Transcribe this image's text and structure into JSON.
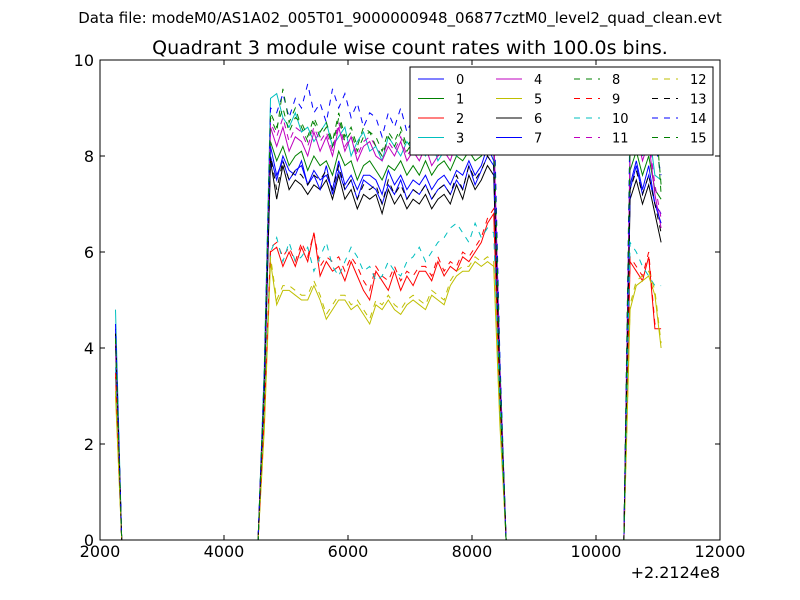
{
  "figure": {
    "suptitle": "Data file: modeM0/AS1A02_005T01_9000000948_06877cztM0_level2_quad_clean.evt"
  },
  "chart_data": {
    "type": "line",
    "title": "Quadrant 3 module wise count rates with 100.0s bins.",
    "xlabel": "",
    "ylabel": "",
    "x_offset_label": "+2.2124e8",
    "xlim": [
      2000,
      12000
    ],
    "ylim": [
      0,
      10
    ],
    "x_ticks": [
      2000,
      4000,
      6000,
      8000,
      10000,
      12000
    ],
    "y_ticks": [
      0,
      2,
      4,
      6,
      8,
      10
    ],
    "grid": false,
    "legend_position": "top-right",
    "legend_columns": 4,
    "x": [
      2250,
      2350,
      2450,
      4450,
      4550,
      4650,
      4750,
      4850,
      4950,
      5050,
      5150,
      5250,
      5350,
      5450,
      5550,
      5650,
      5750,
      5850,
      5950,
      6050,
      6150,
      6250,
      6350,
      6450,
      6550,
      6650,
      6750,
      6850,
      6950,
      7050,
      7150,
      7250,
      7350,
      7450,
      7550,
      7650,
      7750,
      7850,
      7950,
      8050,
      8150,
      8250,
      8350,
      8450,
      8550,
      8650,
      10450,
      10550,
      10650,
      10750,
      10850,
      10950,
      11050
    ],
    "series": [
      {
        "name": "0",
        "color": "#0000ff",
        "dash": "solid",
        "values": [
          4.1,
          0,
          0,
          0,
          0,
          3.1,
          8.0,
          7.5,
          8.0,
          7.7,
          7.6,
          7.9,
          7.4,
          7.7,
          7.5,
          7.6,
          7.3,
          7.9,
          7.4,
          7.6,
          7.3,
          7.6,
          7.6,
          7.5,
          7.2,
          7.7,
          7.4,
          7.6,
          7.3,
          7.5,
          7.4,
          7.6,
          7.3,
          7.5,
          7.6,
          7.4,
          7.7,
          7.6,
          7.9,
          7.6,
          7.8,
          8.2,
          7.9,
          3.2,
          0,
          0,
          0,
          7.4,
          7.9,
          7.3,
          7.8,
          7.0,
          6.8
        ]
      },
      {
        "name": "1",
        "color": "#008000",
        "dash": "solid",
        "values": [
          4.3,
          0,
          0,
          0,
          0,
          3.3,
          8.3,
          7.9,
          8.2,
          7.8,
          8.0,
          8.1,
          7.7,
          8.0,
          7.8,
          7.9,
          7.6,
          8.1,
          7.8,
          7.9,
          7.5,
          7.8,
          7.9,
          7.7,
          7.5,
          7.8,
          7.7,
          7.9,
          7.6,
          7.8,
          7.6,
          7.9,
          7.6,
          7.8,
          7.9,
          7.7,
          8.0,
          7.9,
          8.1,
          7.9,
          8.0,
          8.3,
          8.1,
          3.4,
          0,
          0,
          0,
          7.7,
          8.1,
          7.6,
          8.0,
          7.3,
          7.1
        ]
      },
      {
        "name": "2",
        "color": "#ff0000",
        "dash": "solid",
        "values": [
          3.4,
          0,
          0,
          0,
          0,
          2.5,
          6.0,
          6.1,
          5.7,
          6.0,
          5.7,
          6.1,
          5.8,
          6.4,
          5.5,
          5.8,
          5.6,
          5.7,
          5.4,
          5.8,
          5.5,
          5.2,
          5.0,
          5.6,
          5.4,
          5.2,
          5.6,
          5.2,
          5.5,
          5.3,
          5.6,
          5.6,
          5.4,
          5.8,
          5.5,
          5.7,
          5.6,
          5.9,
          5.8,
          6.0,
          6.2,
          6.6,
          6.8,
          2.8,
          0,
          0,
          0,
          5.8,
          5.6,
          5.4,
          5.9,
          4.4,
          4.4
        ]
      },
      {
        "name": "3",
        "color": "#00bfbf",
        "dash": "solid",
        "values": [
          4.8,
          0,
          0,
          0,
          0,
          3.6,
          9.2,
          9.3,
          8.8,
          8.6,
          8.9,
          8.5,
          8.6,
          8.3,
          8.5,
          8.7,
          8.2,
          8.4,
          8.6,
          8.0,
          8.3,
          8.5,
          8.1,
          8.2,
          7.9,
          8.4,
          8.2,
          8.0,
          8.3,
          8.1,
          8.2,
          8.0,
          8.3,
          7.9,
          8.1,
          8.2,
          8.0,
          8.4,
          8.1,
          8.5,
          8.3,
          8.6,
          8.4,
          3.7,
          0,
          0,
          0,
          8.2,
          8.5,
          8.0,
          8.6,
          7.6,
          7.5
        ]
      },
      {
        "name": "4",
        "color": "#bf00bf",
        "dash": "solid",
        "values": [
          4.0,
          0,
          0,
          0,
          0,
          3.2,
          8.6,
          8.2,
          8.6,
          8.1,
          8.4,
          8.3,
          8.0,
          8.5,
          8.1,
          8.4,
          8.0,
          8.6,
          8.1,
          8.4,
          7.9,
          8.2,
          8.3,
          8.0,
          7.9,
          8.2,
          8.0,
          8.3,
          7.9,
          8.1,
          7.9,
          8.2,
          7.8,
          8.0,
          8.1,
          7.9,
          8.3,
          8.1,
          8.5,
          8.2,
          8.4,
          8.7,
          8.5,
          3.5,
          0,
          0,
          0,
          8.1,
          8.5,
          7.9,
          8.3,
          7.2,
          6.5
        ]
      },
      {
        "name": "5",
        "color": "#bfbf00",
        "dash": "solid",
        "values": [
          3.0,
          0,
          0,
          0,
          0,
          2.3,
          5.8,
          4.9,
          5.2,
          5.2,
          5.1,
          5.0,
          5.0,
          5.3,
          5.0,
          4.6,
          4.8,
          5.0,
          5.0,
          4.8,
          4.9,
          4.7,
          4.5,
          4.9,
          4.8,
          5.0,
          4.8,
          4.7,
          4.9,
          5.0,
          4.9,
          4.8,
          5.1,
          5.0,
          4.9,
          5.3,
          5.5,
          5.6,
          5.6,
          5.8,
          5.7,
          5.8,
          5.7,
          2.4,
          0,
          0,
          0,
          4.8,
          5.3,
          5.4,
          5.5,
          5.1,
          4.0
        ]
      },
      {
        "name": "6",
        "color": "#000000",
        "dash": "solid",
        "values": [
          4.2,
          0,
          0,
          0,
          0,
          3.1,
          7.9,
          7.1,
          7.8,
          7.3,
          7.5,
          7.4,
          7.2,
          7.4,
          7.3,
          7.5,
          7.1,
          7.6,
          7.1,
          7.3,
          6.9,
          7.2,
          7.1,
          7.2,
          6.8,
          7.3,
          7.0,
          7.2,
          6.9,
          7.1,
          7.0,
          7.2,
          6.9,
          7.1,
          7.2,
          7.0,
          7.4,
          7.1,
          7.6,
          7.3,
          7.5,
          7.8,
          7.6,
          3.1,
          0,
          0,
          0,
          7.1,
          7.5,
          7.0,
          7.4,
          6.8,
          6.2
        ]
      },
      {
        "name": "7",
        "color": "#0000ff",
        "dash": "solid",
        "values": [
          4.4,
          0,
          0,
          0,
          0,
          3.3,
          8.2,
          7.6,
          7.9,
          7.5,
          7.7,
          7.8,
          7.4,
          7.6,
          7.3,
          7.8,
          7.2,
          7.7,
          7.3,
          7.5,
          7.1,
          7.5,
          7.4,
          7.3,
          7.0,
          7.4,
          7.2,
          7.5,
          7.1,
          7.3,
          7.2,
          7.4,
          7.1,
          7.3,
          7.4,
          7.2,
          7.5,
          7.3,
          7.8,
          7.4,
          7.7,
          8.0,
          7.8,
          3.3,
          0,
          0,
          0,
          7.3,
          7.8,
          7.2,
          7.6,
          7.0,
          6.6
        ]
      },
      {
        "name": "8",
        "color": "#008000",
        "dash": "dashed",
        "values": [
          4.2,
          0,
          0,
          0,
          0,
          3.4,
          8.9,
          8.6,
          9.0,
          8.5,
          8.8,
          8.7,
          8.4,
          8.8,
          8.5,
          8.7,
          8.3,
          8.9,
          8.4,
          8.6,
          8.2,
          8.6,
          8.5,
          8.4,
          8.1,
          8.5,
          8.3,
          8.6,
          8.2,
          8.4,
          8.3,
          8.5,
          8.2,
          8.4,
          8.5,
          8.3,
          8.7,
          8.5,
          8.9,
          8.6,
          8.8,
          9.1,
          8.9,
          3.6,
          0,
          0,
          0,
          8.5,
          8.8,
          8.3,
          8.7,
          8.9,
          7.4
        ]
      },
      {
        "name": "9",
        "color": "#ff0000",
        "dash": "dashed",
        "values": [
          3.5,
          0,
          0,
          0,
          0,
          2.6,
          6.1,
          6.2,
          5.9,
          6.1,
          5.8,
          6.2,
          5.9,
          6.4,
          5.7,
          5.9,
          5.8,
          5.9,
          5.6,
          5.9,
          5.7,
          5.4,
          5.2,
          5.7,
          5.5,
          5.4,
          5.7,
          5.4,
          5.6,
          5.5,
          5.7,
          5.7,
          5.5,
          5.9,
          5.6,
          5.8,
          5.7,
          6.0,
          5.9,
          6.1,
          6.3,
          6.7,
          6.9,
          2.9,
          0,
          0,
          0,
          5.9,
          5.7,
          5.5,
          6.0,
          4.5,
          4.5
        ]
      },
      {
        "name": "10",
        "color": "#00bfbf",
        "dash": "dashed",
        "values": [
          3.6,
          0,
          0,
          0,
          0,
          2.7,
          6.0,
          6.3,
          5.8,
          6.2,
          5.8,
          5.9,
          6.1,
          5.6,
          5.9,
          6.2,
          5.7,
          5.5,
          5.8,
          6.1,
          5.9,
          5.6,
          5.7,
          5.4,
          5.5,
          5.8,
          5.6,
          5.5,
          5.8,
          5.9,
          6.1,
          5.8,
          6.0,
          6.2,
          6.3,
          6.5,
          6.6,
          6.4,
          6.2,
          6.6,
          6.3,
          6.5,
          6.4,
          2.8,
          0,
          0,
          0,
          6.2,
          6.0,
          5.7,
          5.5,
          5.3,
          5.3
        ]
      },
      {
        "name": "11",
        "color": "#bf00bf",
        "dash": "dashed",
        "values": [
          4.1,
          0,
          0,
          0,
          0,
          3.3,
          8.7,
          8.4,
          8.8,
          8.3,
          8.6,
          8.5,
          8.2,
          8.6,
          8.3,
          8.5,
          8.1,
          8.7,
          8.2,
          8.4,
          8.0,
          8.3,
          8.4,
          8.2,
          8.0,
          8.3,
          8.1,
          8.4,
          8.0,
          8.2,
          8.1,
          8.3,
          8.0,
          8.2,
          8.3,
          8.1,
          8.4,
          8.2,
          8.6,
          8.3,
          8.5,
          8.8,
          8.6,
          3.6,
          0,
          0,
          0,
          8.2,
          8.6,
          8.1,
          8.4,
          7.4,
          6.7
        ]
      },
      {
        "name": "12",
        "color": "#bfbf00",
        "dash": "dashed",
        "values": [
          3.1,
          0,
          0,
          0,
          0,
          2.4,
          5.9,
          5.0,
          5.3,
          5.3,
          5.2,
          5.1,
          5.1,
          5.4,
          5.1,
          4.7,
          4.9,
          5.1,
          5.1,
          4.9,
          5.0,
          4.8,
          4.6,
          5.0,
          4.9,
          5.1,
          4.9,
          4.8,
          5.0,
          5.1,
          5.0,
          4.9,
          5.2,
          5.1,
          5.0,
          5.4,
          5.6,
          5.7,
          5.7,
          5.9,
          5.8,
          5.9,
          5.8,
          2.5,
          0,
          0,
          0,
          4.9,
          5.4,
          5.5,
          5.6,
          5.2,
          4.1
        ]
      },
      {
        "name": "13",
        "color": "#000000",
        "dash": "dashed",
        "values": [
          4.3,
          0,
          0,
          0,
          0,
          3.2,
          8.0,
          7.3,
          7.9,
          7.5,
          7.7,
          7.6,
          7.4,
          7.6,
          7.5,
          7.7,
          7.3,
          7.8,
          7.3,
          7.5,
          7.1,
          7.4,
          7.3,
          7.4,
          7.0,
          7.5,
          7.2,
          7.4,
          7.1,
          7.3,
          7.2,
          7.4,
          7.1,
          7.3,
          7.4,
          7.2,
          7.6,
          7.3,
          7.8,
          7.5,
          7.7,
          8.0,
          7.8,
          3.2,
          0,
          0,
          0,
          7.3,
          7.7,
          7.2,
          7.6,
          7.0,
          6.4
        ]
      },
      {
        "name": "14",
        "color": "#0000ff",
        "dash": "dashed",
        "values": [
          4.5,
          0,
          0,
          0,
          0,
          3.5,
          9.0,
          8.9,
          9.3,
          8.8,
          9.2,
          9.0,
          9.5,
          8.9,
          9.1,
          8.7,
          9.4,
          9.0,
          9.3,
          8.8,
          9.1,
          8.6,
          8.9,
          8.8,
          8.4,
          8.9,
          8.6,
          9.0,
          8.5,
          8.8,
          8.6,
          8.9,
          8.5,
          8.8,
          9.0,
          8.6,
          9.1,
          8.8,
          9.3,
          8.9,
          9.2,
          9.5,
          9.3,
          3.8,
          0,
          0,
          0,
          8.9,
          9.0,
          8.3,
          8.6,
          8.3,
          7.6
        ]
      },
      {
        "name": "15",
        "color": "#008000",
        "dash": "dashed",
        "values": [
          4.2,
          0,
          0,
          0,
          0,
          3.4,
          8.8,
          8.5,
          9.4,
          8.7,
          9.0,
          8.6,
          8.3,
          8.7,
          8.4,
          8.6,
          8.2,
          8.8,
          8.3,
          8.5,
          8.1,
          8.4,
          8.5,
          8.2,
          8.0,
          8.4,
          8.2,
          8.5,
          8.1,
          8.3,
          8.2,
          8.4,
          8.1,
          8.3,
          8.4,
          8.2,
          8.6,
          8.4,
          8.8,
          8.5,
          8.7,
          9.0,
          8.8,
          3.5,
          0,
          0,
          0,
          8.4,
          8.7,
          8.2,
          8.6,
          9.1,
          7.2
        ]
      }
    ]
  }
}
